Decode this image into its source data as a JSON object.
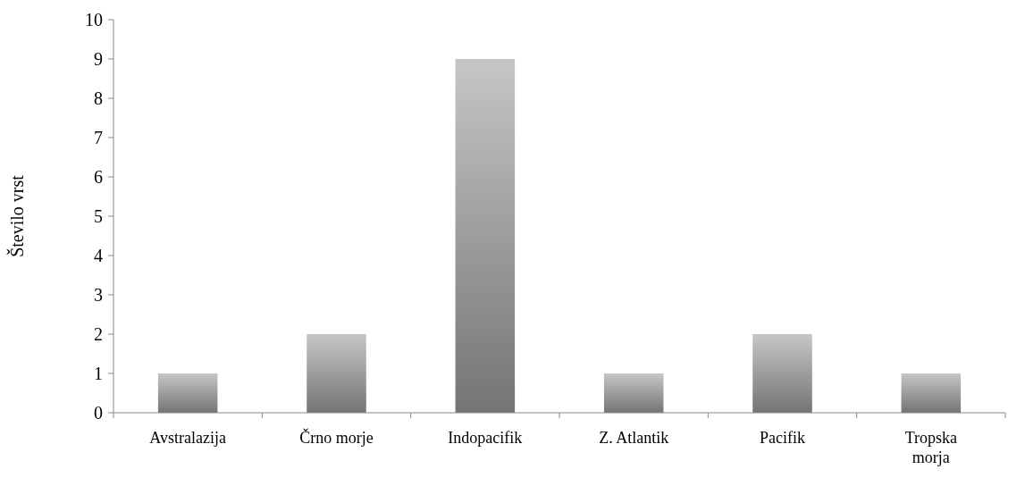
{
  "chart_data": {
    "type": "bar",
    "ylabel": "Število vrst",
    "categories": [
      "Avstralazija",
      "Črno morje",
      "Indopacifik",
      "Z. Atlantik",
      "Pacifik",
      "Tropska morja"
    ],
    "values": [
      1,
      2,
      9,
      1,
      2,
      1
    ],
    "color": "#9a9a9a",
    "ylim": [
      0,
      10
    ],
    "yticks": [
      0,
      1,
      2,
      3,
      4,
      5,
      6,
      7,
      8,
      9,
      10
    ],
    "grid": false
  }
}
